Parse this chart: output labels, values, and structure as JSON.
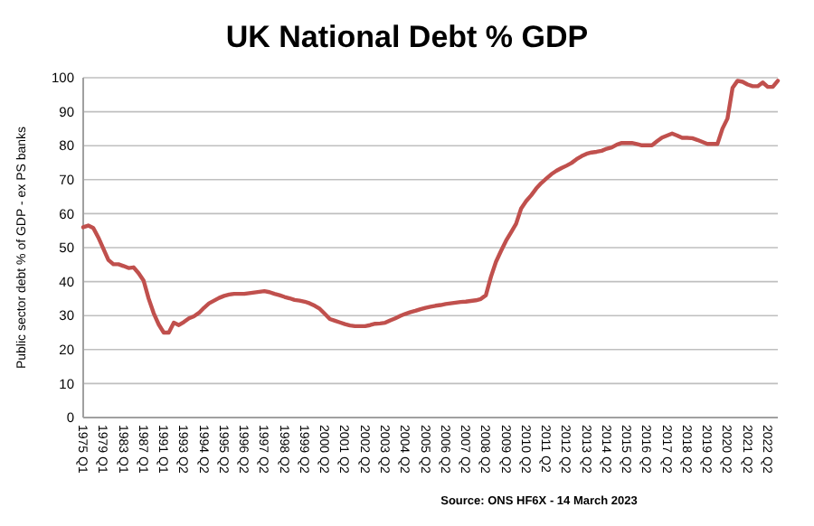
{
  "chart_data": {
    "type": "line",
    "title": "UK National Debt % GDP",
    "ylabel": "Public sector debt % of GDP - ex PS banks",
    "annotations": [
      "Source: ONS HF6X - 14 March 2023"
    ],
    "categories": [
      "1975 Q1",
      null,
      null,
      null,
      "1979 Q1",
      null,
      null,
      null,
      "1983 Q1",
      null,
      null,
      null,
      "1987 Q1",
      null,
      null,
      null,
      "1991 Q1",
      null,
      null,
      null,
      "1993 Q2",
      null,
      null,
      null,
      "1994 Q2",
      null,
      null,
      null,
      "1995 Q2",
      null,
      null,
      null,
      "1996 Q2",
      null,
      null,
      null,
      "1997 Q2",
      null,
      null,
      null,
      "1998 Q2",
      null,
      null,
      null,
      "1999 Q2",
      null,
      null,
      null,
      "2000 Q2",
      null,
      null,
      null,
      "2001 Q2",
      null,
      null,
      null,
      "2002 Q2",
      null,
      null,
      null,
      "2003 Q2",
      null,
      null,
      null,
      "2004 Q2",
      null,
      null,
      null,
      "2005 Q2",
      null,
      null,
      null,
      "2006 Q2",
      null,
      null,
      null,
      "2007 Q2",
      null,
      null,
      null,
      "2008 Q2",
      null,
      null,
      null,
      "2009 Q2",
      null,
      null,
      null,
      "2010 Q2",
      null,
      null,
      null,
      "2011 Q2",
      null,
      null,
      null,
      "2012 Q2",
      null,
      null,
      null,
      "2013 Q2",
      null,
      null,
      null,
      "2014 Q2",
      null,
      null,
      null,
      "2015 Q2",
      null,
      null,
      null,
      "2016 Q2",
      null,
      null,
      null,
      "2017 Q2",
      null,
      null,
      null,
      "2018 Q2",
      null,
      null,
      null,
      "2019 Q2",
      null,
      null,
      null,
      "2020 Q2",
      null,
      null,
      null,
      "2021 Q2",
      null,
      null,
      null,
      "2022 Q2",
      null,
      null
    ],
    "series": [
      {
        "color": "#c0504d",
        "values": [
          56,
          56.5,
          55.8,
          53,
          49.7,
          46.4,
          45.1,
          45.1,
          44.6,
          44,
          44.2,
          42.5,
          40.3,
          35,
          30.7,
          27.4,
          25,
          25,
          27.9,
          27.2,
          28.1,
          29.2,
          29.8,
          30.8,
          32.3,
          33.6,
          34.4,
          35.2,
          35.8,
          36.2,
          36.4,
          36.4,
          36.4,
          36.6,
          36.8,
          37,
          37.2,
          36.9,
          36.4,
          36,
          35.5,
          35.1,
          34.6,
          34.4,
          34.1,
          33.6,
          32.9,
          32,
          30.5,
          29,
          28.5,
          28,
          27.5,
          27.1,
          26.9,
          26.9,
          26.9,
          27.2,
          27.6,
          27.7,
          27.9,
          28.6,
          29.2,
          29.9,
          30.5,
          31,
          31.4,
          31.9,
          32.3,
          32.6,
          32.9,
          33.1,
          33.4,
          33.6,
          33.8,
          34,
          34.1,
          34.3,
          34.5,
          34.9,
          36,
          41.4,
          45.8,
          49,
          52,
          54.5,
          57,
          61.5,
          63.7,
          65.4,
          67.4,
          69,
          70.3,
          71.6,
          72.6,
          73.4,
          74.1,
          74.9,
          76,
          76.9,
          77.6,
          78,
          78.2,
          78.5,
          79.1,
          79.5,
          80.3,
          80.8,
          80.8,
          80.8,
          80.5,
          80.1,
          80.1,
          80.1,
          81.3,
          82.4,
          83,
          83.6,
          83,
          82.3,
          82.3,
          82.2,
          81.7,
          81.1,
          80.5,
          80.5,
          80.5,
          85,
          88,
          97,
          99.1,
          98.8,
          98,
          97.5,
          97.5,
          98.6,
          97.3,
          97.3,
          99.1
        ]
      }
    ],
    "ylim": [
      0,
      100
    ],
    "yticks": [
      0,
      10,
      20,
      30,
      40,
      50,
      60,
      70,
      80,
      90,
      100
    ],
    "grid": "y",
    "marker": "none",
    "line_style": "solid"
  }
}
